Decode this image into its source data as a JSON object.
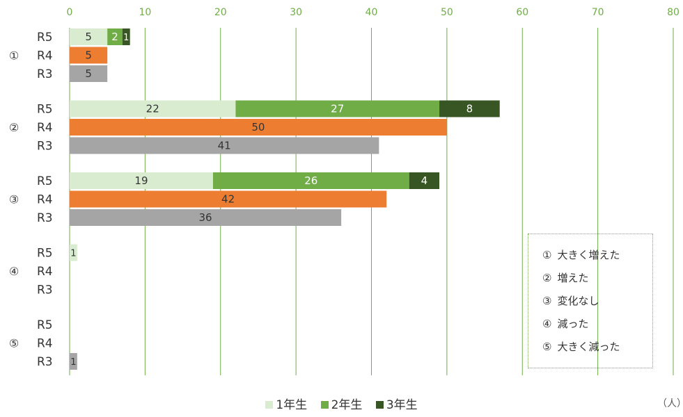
{
  "chart_data": {
    "type": "bar",
    "orientation": "horizontal",
    "stacked": true,
    "x_axis_position": "top",
    "xlim": [
      0,
      80
    ],
    "x_ticks": [
      0,
      10,
      20,
      30,
      40,
      50,
      60,
      70,
      80
    ],
    "unit": "（人）",
    "colors": {
      "gridline": "#70ad47",
      "axis_label": "#70ad47",
      "text": "#333333",
      "1年生": "#d9ecd0",
      "2年生": "#70ad47",
      "3年生": "#375623",
      "R4": "#ed7d31",
      "R3": "#a5a5a5"
    },
    "groups": [
      {
        "label": "①",
        "rows": [
          {
            "label": "R5",
            "segments": [
              {
                "series": "1年生",
                "value": 5
              },
              {
                "series": "2年生",
                "value": 2
              },
              {
                "series": "3年生",
                "value": 1
              }
            ]
          },
          {
            "label": "R4",
            "segments": [
              {
                "series": "R4",
                "value": 5
              }
            ]
          },
          {
            "label": "R3",
            "segments": [
              {
                "series": "R3",
                "value": 5
              }
            ]
          }
        ]
      },
      {
        "label": "②",
        "rows": [
          {
            "label": "R5",
            "segments": [
              {
                "series": "1年生",
                "value": 22
              },
              {
                "series": "2年生",
                "value": 27
              },
              {
                "series": "3年生",
                "value": 8
              }
            ]
          },
          {
            "label": "R4",
            "segments": [
              {
                "series": "R4",
                "value": 50
              }
            ]
          },
          {
            "label": "R3",
            "segments": [
              {
                "series": "R3",
                "value": 41
              }
            ]
          }
        ]
      },
      {
        "label": "③",
        "rows": [
          {
            "label": "R5",
            "segments": [
              {
                "series": "1年生",
                "value": 19
              },
              {
                "series": "2年生",
                "value": 26
              },
              {
                "series": "3年生",
                "value": 4
              }
            ]
          },
          {
            "label": "R4",
            "segments": [
              {
                "series": "R4",
                "value": 42
              }
            ]
          },
          {
            "label": "R3",
            "segments": [
              {
                "series": "R3",
                "value": 36
              }
            ]
          }
        ]
      },
      {
        "label": "④",
        "rows": [
          {
            "label": "R5",
            "segments": [
              {
                "series": "1年生",
                "value": 1
              }
            ]
          },
          {
            "label": "R4",
            "segments": []
          },
          {
            "label": "R3",
            "segments": []
          }
        ]
      },
      {
        "label": "⑤",
        "rows": [
          {
            "label": "R5",
            "segments": []
          },
          {
            "label": "R4",
            "segments": []
          },
          {
            "label": "R3",
            "segments": [
              {
                "series": "R3",
                "value": 1
              }
            ]
          }
        ]
      }
    ],
    "series_legend": [
      "1年生",
      "2年生",
      "3年生"
    ],
    "category_legend": [
      {
        "num": "①",
        "text": "大きく増えた"
      },
      {
        "num": "②",
        "text": "増えた"
      },
      {
        "num": "③",
        "text": "変化なし"
      },
      {
        "num": "④",
        "text": "減った"
      },
      {
        "num": "⑤",
        "text": "大きく減った"
      }
    ]
  }
}
